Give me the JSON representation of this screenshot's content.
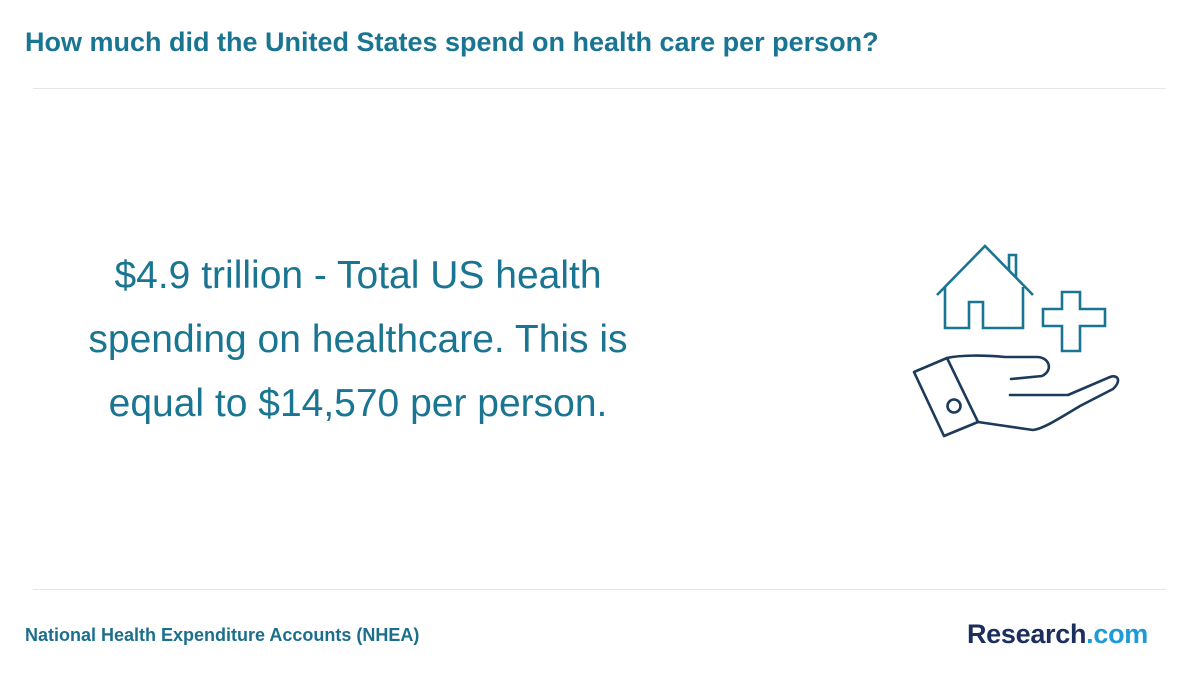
{
  "header": {
    "title": "How much did the United States spend on health care per person?"
  },
  "main": {
    "stat_line_1": "$4.9 trillion - Total US health",
    "stat_line_2": "spending on healthcare. This is",
    "stat_line_3": "equal to $14,570 per person.",
    "illustration_icon": "hand-holding-house-and-medical-cross-icon"
  },
  "footer": {
    "source": "National Health Expenditure Accounts (NHEA)",
    "logo_brand": "Research",
    "logo_tld": ".com"
  },
  "colors": {
    "accent": "#1a7592",
    "icon_house": "#1a7592",
    "icon_hand": "#1c3a5a",
    "logo_brand": "#1b2f5e",
    "logo_tld": "#1e9ad6",
    "divider": "#e5e8ea"
  }
}
